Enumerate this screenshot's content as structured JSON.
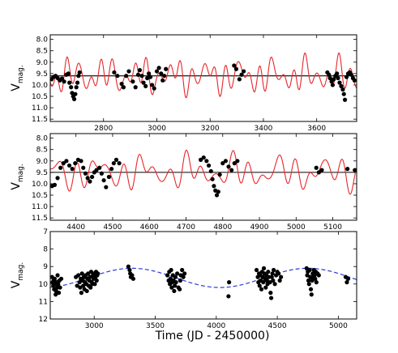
{
  "figure": {
    "xlabel": "Time (JD - 2450000)",
    "ylabel_main": "V",
    "ylabel_sub": "mag."
  },
  "chart_data": [
    {
      "type": "scatter",
      "xlim": [
        2600,
        3750
      ],
      "ylim": [
        11.6,
        7.8
      ],
      "xticks": [
        2800,
        3000,
        3200,
        3400,
        3600
      ],
      "yticks": [
        8.0,
        8.5,
        9.0,
        9.5,
        10.0,
        10.5,
        11.0,
        11.5
      ],
      "yticklabels": [
        "8.0",
        "8.5",
        "9.0",
        "9.5",
        "10.0",
        "10.5",
        "11.0",
        "11.5"
      ],
      "mean_line": 9.6,
      "model": {
        "color": "#e8262b",
        "mean": 9.6,
        "components": [
          [
            0.42,
            42.5,
            0.3
          ],
          [
            0.3,
            125,
            1.7
          ],
          [
            0.22,
            60,
            2.9
          ],
          [
            0.12,
            33,
            0.8
          ]
        ]
      },
      "points": [
        [
          2605,
          9.75
        ],
        [
          2612,
          9.65
        ],
        [
          2620,
          9.6
        ],
        [
          2628,
          9.7
        ],
        [
          2636,
          9.8
        ],
        [
          2644,
          9.72
        ],
        [
          2652,
          9.85
        ],
        [
          2660,
          9.55
        ],
        [
          2668,
          9.5
        ],
        [
          2672,
          9.9
        ],
        [
          2678,
          10.1
        ],
        [
          2682,
          10.35
        ],
        [
          2686,
          10.5
        ],
        [
          2690,
          10.62
        ],
        [
          2694,
          10.4
        ],
        [
          2698,
          10.1
        ],
        [
          2702,
          9.9
        ],
        [
          2706,
          9.6
        ],
        [
          2710,
          9.45
        ],
        [
          2840,
          9.45
        ],
        [
          2852,
          9.6
        ],
        [
          2868,
          9.95
        ],
        [
          2875,
          10.1
        ],
        [
          2885,
          9.6
        ],
        [
          2895,
          9.4
        ],
        [
          2910,
          9.85
        ],
        [
          2920,
          10.1
        ],
        [
          2930,
          9.55
        ],
        [
          2936,
          9.35
        ],
        [
          2944,
          9.6
        ],
        [
          2950,
          9.9
        ],
        [
          2958,
          10.05
        ],
        [
          2964,
          9.7
        ],
        [
          2970,
          9.5
        ],
        [
          2976,
          9.65
        ],
        [
          2982,
          10.0
        ],
        [
          2990,
          10.15
        ],
        [
          3000,
          9.4
        ],
        [
          3008,
          9.25
        ],
        [
          3016,
          9.5
        ],
        [
          3022,
          9.8
        ],
        [
          3028,
          9.6
        ],
        [
          3034,
          9.3
        ],
        [
          3290,
          9.15
        ],
        [
          3298,
          9.3
        ],
        [
          3310,
          9.75
        ],
        [
          3318,
          9.55
        ],
        [
          3326,
          9.4
        ],
        [
          3640,
          9.45
        ],
        [
          3646,
          9.55
        ],
        [
          3650,
          9.7
        ],
        [
          3656,
          9.85
        ],
        [
          3660,
          10.0
        ],
        [
          3664,
          9.75
        ],
        [
          3670,
          9.6
        ],
        [
          3676,
          9.5
        ],
        [
          3680,
          9.7
        ],
        [
          3686,
          9.9
        ],
        [
          3692,
          10.05
        ],
        [
          3698,
          10.2
        ],
        [
          3702,
          10.4
        ],
        [
          3706,
          10.65
        ],
        [
          3712,
          9.65
        ],
        [
          3718,
          9.5
        ],
        [
          3724,
          9.45
        ],
        [
          3730,
          9.55
        ],
        [
          3736,
          9.7
        ],
        [
          3742,
          9.8
        ]
      ]
    },
    {
      "type": "scatter",
      "xlim": [
        4330,
        5165
      ],
      "ylim": [
        11.6,
        7.8
      ],
      "xticks": [
        4400,
        4500,
        4600,
        4700,
        4800,
        4900,
        5000,
        5100
      ],
      "yticks": [
        8.0,
        8.5,
        9.0,
        9.5,
        10.0,
        10.5,
        11.0,
        11.5
      ],
      "yticklabels": [
        "8.0",
        "8.5",
        "9.0",
        "9.5",
        "10.0",
        "10.5",
        "11.0",
        "11.5"
      ],
      "mean_line": 9.5,
      "model": {
        "color": "#e8262b",
        "mean": 9.5,
        "components": [
          [
            0.4,
            42.5,
            1.1
          ],
          [
            0.3,
            125,
            0.4
          ],
          [
            0.22,
            60,
            2.1
          ],
          [
            0.12,
            33,
            1.9
          ]
        ]
      },
      "points": [
        [
          4335,
          10.1
        ],
        [
          4342,
          10.05
        ],
        [
          4350,
          9.75
        ],
        [
          4358,
          9.3
        ],
        [
          4366,
          9.1
        ],
        [
          4374,
          9.0
        ],
        [
          4382,
          9.2
        ],
        [
          4390,
          9.35
        ],
        [
          4398,
          9.1
        ],
        [
          4406,
          8.95
        ],
        [
          4414,
          9.0
        ],
        [
          4420,
          9.3
        ],
        [
          4426,
          9.55
        ],
        [
          4432,
          9.75
        ],
        [
          4438,
          9.9
        ],
        [
          4444,
          9.7
        ],
        [
          4450,
          9.5
        ],
        [
          4456,
          9.4
        ],
        [
          4464,
          9.3
        ],
        [
          4470,
          9.55
        ],
        [
          4476,
          9.85
        ],
        [
          4482,
          10.15
        ],
        [
          4490,
          9.7
        ],
        [
          4497,
          9.35
        ],
        [
          4503,
          9.1
        ],
        [
          4510,
          8.95
        ],
        [
          4518,
          9.1
        ],
        [
          4740,
          8.95
        ],
        [
          4748,
          8.85
        ],
        [
          4756,
          9.0
        ],
        [
          4762,
          9.2
        ],
        [
          4768,
          9.45
        ],
        [
          4772,
          9.8
        ],
        [
          4776,
          10.1
        ],
        [
          4780,
          10.3
        ],
        [
          4784,
          10.5
        ],
        [
          4788,
          10.35
        ],
        [
          4792,
          9.6
        ],
        [
          4800,
          9.1
        ],
        [
          4808,
          9.0
        ],
        [
          4816,
          9.25
        ],
        [
          4824,
          9.4
        ],
        [
          4832,
          9.1
        ],
        [
          4840,
          9.0
        ],
        [
          5055,
          9.3
        ],
        [
          5062,
          9.5
        ],
        [
          5070,
          9.4
        ],
        [
          5140,
          9.35
        ],
        [
          5160,
          9.4
        ]
      ]
    },
    {
      "type": "scatter",
      "xlim": [
        2640,
        5150
      ],
      "ylim": [
        12,
        7
      ],
      "xticks": [
        3000,
        3500,
        4000,
        4500,
        5000
      ],
      "yticks": [
        7,
        8,
        9,
        10,
        11,
        12
      ],
      "yticklabels": [
        "7",
        "8",
        "9",
        "10",
        "11",
        "12"
      ],
      "fit": {
        "color": "#2b3bd6",
        "mean": 9.65,
        "amplitude": 0.55,
        "period": 1440,
        "peak_x": 3310
      },
      "points": [
        [
          2655,
          9.6
        ],
        [
          2660,
          9.9
        ],
        [
          2665,
          10.1
        ],
        [
          2668,
          9.8
        ],
        [
          2672,
          10.3
        ],
        [
          2676,
          9.7
        ],
        [
          2680,
          10.0
        ],
        [
          2684,
          10.6
        ],
        [
          2688,
          10.4
        ],
        [
          2692,
          9.9
        ],
        [
          2696,
          10.2
        ],
        [
          2700,
          9.5
        ],
        [
          2705,
          10.0
        ],
        [
          2710,
          10.5
        ],
        [
          2715,
          9.8
        ],
        [
          2720,
          10.2
        ],
        [
          2730,
          9.7
        ],
        [
          2850,
          9.6
        ],
        [
          2860,
          10.1
        ],
        [
          2870,
          9.5
        ],
        [
          2880,
          9.9
        ],
        [
          2885,
          10.2
        ],
        [
          2890,
          9.7
        ],
        [
          2895,
          10.5
        ],
        [
          2900,
          9.4
        ],
        [
          2905,
          9.8
        ],
        [
          2910,
          10.1
        ],
        [
          2915,
          9.6
        ],
        [
          2920,
          10.3
        ],
        [
          2925,
          9.9
        ],
        [
          2930,
          9.5
        ],
        [
          2935,
          10.0
        ],
        [
          2940,
          10.4
        ],
        [
          2945,
          9.7
        ],
        [
          2950,
          9.4
        ],
        [
          2955,
          10.1
        ],
        [
          2960,
          9.8
        ],
        [
          2965,
          9.6
        ],
        [
          2970,
          10.2
        ],
        [
          2975,
          9.3
        ],
        [
          2980,
          9.9
        ],
        [
          2985,
          10.0
        ],
        [
          2990,
          9.5
        ],
        [
          2995,
          9.7
        ],
        [
          3000,
          9.4
        ],
        [
          3005,
          10.0
        ],
        [
          3010,
          9.6
        ],
        [
          3015,
          9.3
        ],
        [
          3020,
          9.8
        ],
        [
          3025,
          9.5
        ],
        [
          3030,
          9.4
        ],
        [
          3280,
          9.0
        ],
        [
          3290,
          9.2
        ],
        [
          3295,
          9.4
        ],
        [
          3300,
          9.6
        ],
        [
          3310,
          9.5
        ],
        [
          3320,
          9.7
        ],
        [
          3600,
          9.5
        ],
        [
          3610,
          9.8
        ],
        [
          3615,
          9.3
        ],
        [
          3620,
          10.0
        ],
        [
          3625,
          9.7
        ],
        [
          3630,
          9.2
        ],
        [
          3635,
          10.2
        ],
        [
          3640,
          9.9
        ],
        [
          3645,
          9.5
        ],
        [
          3650,
          9.8
        ],
        [
          3655,
          10.4
        ],
        [
          3660,
          10.1
        ],
        [
          3665,
          9.6
        ],
        [
          3670,
          9.9
        ],
        [
          3680,
          9.4
        ],
        [
          3690,
          10.2
        ],
        [
          3700,
          10.3
        ],
        [
          3705,
          9.8
        ],
        [
          3710,
          9.5
        ],
        [
          3720,
          9.2
        ],
        [
          3730,
          9.6
        ],
        [
          3740,
          9.4
        ],
        [
          4100,
          10.7
        ],
        [
          4105,
          9.9
        ],
        [
          4330,
          9.2
        ],
        [
          4340,
          9.6
        ],
        [
          4345,
          9.9
        ],
        [
          4350,
          9.4
        ],
        [
          4355,
          10.1
        ],
        [
          4360,
          9.5
        ],
        [
          4365,
          9.8
        ],
        [
          4370,
          10.3
        ],
        [
          4375,
          9.3
        ],
        [
          4380,
          9.6
        ],
        [
          4385,
          9.9
        ],
        [
          4390,
          9.1
        ],
        [
          4395,
          9.4
        ],
        [
          4400,
          9.7
        ],
        [
          4405,
          10.2
        ],
        [
          4410,
          9.5
        ],
        [
          4415,
          9.8
        ],
        [
          4420,
          10.0
        ],
        [
          4425,
          9.3
        ],
        [
          4430,
          9.6
        ],
        [
          4440,
          9.9
        ],
        [
          4445,
          10.5
        ],
        [
          4450,
          10.8
        ],
        [
          4455,
          9.6
        ],
        [
          4460,
          9.4
        ],
        [
          4465,
          9.8
        ],
        [
          4470,
          9.2
        ],
        [
          4480,
          10.0
        ],
        [
          4490,
          9.5
        ],
        [
          4500,
          9.3
        ],
        [
          4510,
          9.4
        ],
        [
          4520,
          9.8
        ],
        [
          4530,
          9.6
        ],
        [
          4740,
          9.1
        ],
        [
          4745,
          9.5
        ],
        [
          4750,
          9.3
        ],
        [
          4755,
          9.8
        ],
        [
          4760,
          10.0
        ],
        [
          4765,
          9.2
        ],
        [
          4770,
          9.6
        ],
        [
          4775,
          10.3
        ],
        [
          4780,
          10.6
        ],
        [
          4785,
          9.8
        ],
        [
          4790,
          9.4
        ],
        [
          4795,
          9.6
        ],
        [
          4800,
          9.2
        ],
        [
          4805,
          9.5
        ],
        [
          4810,
          9.7
        ],
        [
          4815,
          9.3
        ],
        [
          4820,
          9.9
        ],
        [
          4830,
          9.4
        ],
        [
          4840,
          9.5
        ],
        [
          5060,
          9.6
        ],
        [
          5070,
          9.9
        ],
        [
          5080,
          9.7
        ]
      ]
    }
  ]
}
